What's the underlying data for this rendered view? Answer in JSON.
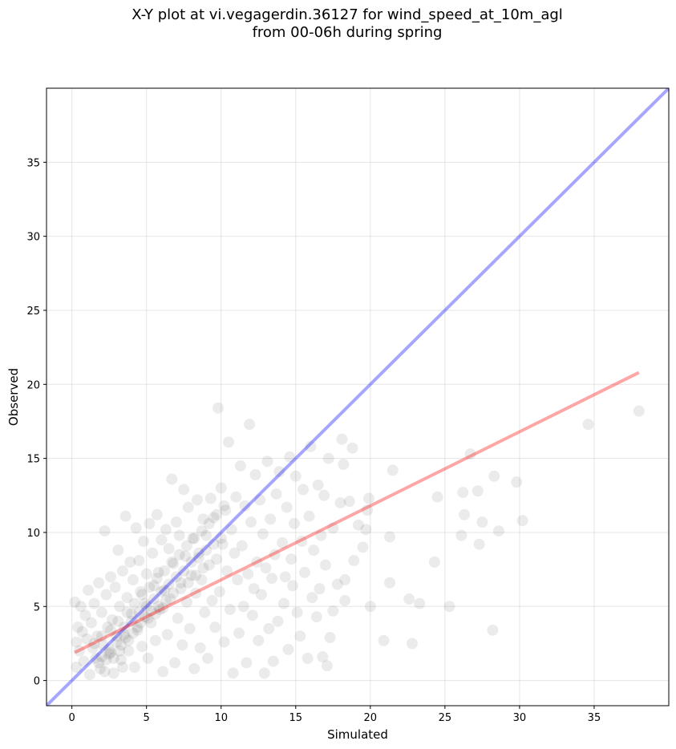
{
  "chart_data": {
    "type": "scatter",
    "title_lines": [
      "X-Y plot at vi.vegagerdin.36127 for wind_speed_at_10m_agl",
      "from 00-06h during spring"
    ],
    "xlabel": "Simulated",
    "ylabel": "Observed",
    "xlim": [
      -1.7,
      40
    ],
    "ylim": [
      -1.7,
      40
    ],
    "xticks": [
      0,
      5,
      10,
      15,
      20,
      25,
      30,
      35
    ],
    "yticks": [
      0,
      5,
      10,
      15,
      20,
      25,
      30,
      35
    ],
    "grid": true,
    "legend": "none",
    "point_color": "#000000",
    "point_alpha": 0.08,
    "reference_line": {
      "x": [
        -1.7,
        40
      ],
      "y": [
        -1.7,
        40
      ],
      "color": "#0000ff",
      "alpha": 0.35
    },
    "regression_line": {
      "x": [
        0.2,
        38
      ],
      "y": [
        1.9,
        20.8
      ],
      "color": "#ff0000",
      "alpha": 0.35
    },
    "points": [
      [
        38.0,
        18.2
      ],
      [
        34.6,
        17.3
      ],
      [
        30.2,
        10.8
      ],
      [
        29.8,
        13.4
      ],
      [
        28.6,
        10.1
      ],
      [
        28.3,
        13.8
      ],
      [
        28.2,
        3.4
      ],
      [
        27.5,
        10.7
      ],
      [
        27.3,
        9.2
      ],
      [
        27.2,
        12.8
      ],
      [
        26.7,
        15.3
      ],
      [
        26.3,
        11.2
      ],
      [
        26.2,
        12.7
      ],
      [
        26.1,
        9.8
      ],
      [
        25.3,
        5.0
      ],
      [
        24.5,
        12.4
      ],
      [
        24.3,
        8.0
      ],
      [
        23.3,
        5.2
      ],
      [
        22.8,
        2.5
      ],
      [
        22.6,
        5.5
      ],
      [
        21.5,
        14.2
      ],
      [
        21.3,
        9.7
      ],
      [
        21.3,
        6.6
      ],
      [
        20.9,
        2.7
      ],
      [
        20.0,
        5.0
      ],
      [
        19.9,
        12.3
      ],
      [
        19.8,
        11.5
      ],
      [
        19.7,
        10.2
      ],
      [
        19.5,
        9.0
      ],
      [
        19.2,
        10.5
      ],
      [
        18.9,
        8.1
      ],
      [
        18.8,
        15.7
      ],
      [
        18.6,
        12.1
      ],
      [
        18.3,
        6.8
      ],
      [
        18.3,
        5.4
      ],
      [
        18.2,
        14.6
      ],
      [
        18.1,
        16.3
      ],
      [
        18.0,
        12.0
      ],
      [
        17.8,
        6.5
      ],
      [
        17.5,
        10.3
      ],
      [
        17.5,
        4.7
      ],
      [
        17.3,
        2.9
      ],
      [
        17.2,
        15.0
      ],
      [
        17.1,
        1.0
      ],
      [
        17.0,
        7.8
      ],
      [
        16.9,
        12.5
      ],
      [
        16.8,
        1.6
      ],
      [
        16.7,
        9.8
      ],
      [
        16.6,
        6.2
      ],
      [
        16.5,
        13.2
      ],
      [
        16.4,
        4.3
      ],
      [
        16.2,
        8.8
      ],
      [
        16.1,
        5.6
      ],
      [
        16.0,
        15.8
      ],
      [
        15.9,
        11.1
      ],
      [
        15.8,
        1.5
      ],
      [
        15.6,
        7.3
      ],
      [
        15.5,
        12.9
      ],
      [
        15.4,
        9.4
      ],
      [
        15.3,
        3.0
      ],
      [
        15.1,
        4.6
      ],
      [
        15.0,
        13.8
      ],
      [
        14.9,
        10.6
      ],
      [
        14.8,
        6.4
      ],
      [
        14.7,
        8.2
      ],
      [
        14.6,
        15.1
      ],
      [
        14.5,
        2.1
      ],
      [
        14.4,
        11.7
      ],
      [
        14.3,
        7.0
      ],
      [
        14.2,
        5.2
      ],
      [
        14.1,
        9.3
      ],
      [
        13.9,
        14.1
      ],
      [
        13.8,
        4.0
      ],
      [
        13.7,
        12.6
      ],
      [
        13.6,
        8.5
      ],
      [
        13.5,
        1.3
      ],
      [
        13.4,
        6.9
      ],
      [
        13.3,
        10.9
      ],
      [
        13.2,
        3.5
      ],
      [
        13.1,
        14.8
      ],
      [
        13.0,
        7.6
      ],
      [
        12.9,
        0.5
      ],
      [
        12.8,
        9.9
      ],
      [
        12.7,
        5.8
      ],
      [
        12.6,
        12.2
      ],
      [
        12.5,
        2.7
      ],
      [
        12.4,
        8.0
      ],
      [
        12.3,
        13.9
      ],
      [
        12.2,
        6.2
      ],
      [
        12.1,
        4.4
      ],
      [
        12.0,
        10.7
      ],
      [
        11.9,
        17.3
      ],
      [
        11.8,
        7.2
      ],
      [
        11.7,
        1.2
      ],
      [
        11.6,
        11.8
      ],
      [
        11.5,
        5.0
      ],
      [
        11.4,
        9.1
      ],
      [
        11.3,
        14.5
      ],
      [
        11.2,
        3.2
      ],
      [
        11.1,
        6.8
      ],
      [
        11.0,
        12.4
      ],
      [
        10.9,
        8.6
      ],
      [
        10.8,
        0.5
      ],
      [
        10.7,
        10.2
      ],
      [
        10.6,
        4.8
      ],
      [
        10.5,
        16.1
      ],
      [
        10.4,
        7.4
      ],
      [
        10.3,
        11.5
      ],
      [
        10.2,
        2.6
      ],
      [
        10.1,
        9.2
      ],
      [
        10.0,
        13.0
      ],
      [
        9.9,
        6.0
      ],
      [
        9.8,
        18.4
      ],
      [
        9.7,
        8.2
      ],
      [
        9.6,
        3.6
      ],
      [
        9.5,
        11.0
      ],
      [
        9.4,
        5.4
      ],
      [
        9.3,
        12.3
      ],
      [
        9.2,
        7.8
      ],
      [
        9.1,
        1.5
      ],
      [
        9.0,
        9.8
      ],
      [
        8.9,
        4.6
      ],
      [
        8.8,
        10.9
      ],
      [
        8.7,
        6.8
      ],
      [
        8.6,
        2.2
      ],
      [
        8.5,
        8.6
      ],
      [
        8.4,
        12.2
      ],
      [
        8.3,
        5.9
      ],
      [
        8.2,
        0.8
      ],
      [
        8.1,
        9.6
      ],
      [
        8.0,
        7.1
      ],
      [
        7.9,
        3.5
      ],
      [
        7.8,
        11.7
      ],
      [
        7.7,
        5.3
      ],
      [
        7.6,
        8.4
      ],
      [
        7.5,
        12.9
      ],
      [
        7.4,
        2.4
      ],
      [
        7.3,
        6.6
      ],
      [
        7.2,
        9.8
      ],
      [
        7.1,
        4.2
      ],
      [
        7.0,
        10.7
      ],
      [
        6.9,
        1.2
      ],
      [
        6.8,
        7.9
      ],
      [
        6.7,
        13.6
      ],
      [
        6.6,
        5.5
      ],
      [
        6.5,
        8.9
      ],
      [
        6.4,
        3.1
      ],
      [
        6.3,
        10.2
      ],
      [
        6.2,
        6.1
      ],
      [
        6.1,
        0.6
      ],
      [
        6.0,
        9.5
      ],
      [
        5.9,
        4.8
      ],
      [
        5.8,
        7.3
      ],
      [
        5.7,
        11.2
      ],
      [
        5.6,
        2.7
      ],
      [
        5.5,
        6.4
      ],
      [
        5.4,
        8.6
      ],
      [
        5.3,
        3.9
      ],
      [
        5.2,
        10.6
      ],
      [
        5.1,
        1.5
      ],
      [
        5.0,
        7.2
      ],
      [
        4.9,
        5.2
      ],
      [
        4.8,
        9.4
      ],
      [
        4.7,
        2.3
      ],
      [
        4.6,
        6.0
      ],
      [
        4.5,
        8.1
      ],
      [
        4.4,
        3.4
      ],
      [
        4.3,
        10.3
      ],
      [
        4.2,
        0.9
      ],
      [
        4.1,
        6.8
      ],
      [
        4.0,
        4.5
      ],
      [
        3.9,
        8.0
      ],
      [
        3.8,
        2.0
      ],
      [
        3.7,
        5.6
      ],
      [
        3.6,
        11.1
      ],
      [
        3.5,
        3.1
      ],
      [
        3.4,
        7.4
      ],
      [
        3.3,
        1.4
      ],
      [
        3.2,
        5.0
      ],
      [
        3.1,
        8.8
      ],
      [
        3.0,
        2.6
      ],
      [
        2.9,
        6.3
      ],
      [
        2.8,
        0.5
      ],
      [
        2.7,
        4.1
      ],
      [
        2.6,
        7.0
      ],
      [
        2.5,
        1.8
      ],
      [
        2.4,
        3.6
      ],
      [
        2.3,
        5.8
      ],
      [
        2.2,
        10.1
      ],
      [
        2.1,
        2.4
      ],
      [
        2.0,
        4.6
      ],
      [
        1.9,
        0.8
      ],
      [
        1.8,
        6.6
      ],
      [
        1.7,
        3.0
      ],
      [
        1.6,
        1.5
      ],
      [
        1.5,
        5.2
      ],
      [
        1.4,
        2.2
      ],
      [
        1.3,
        3.9
      ],
      [
        1.2,
        0.4
      ],
      [
        1.1,
        6.1
      ],
      [
        1.0,
        2.8
      ],
      [
        0.9,
        4.4
      ],
      [
        0.8,
        1.3
      ],
      [
        0.7,
        3.3
      ],
      [
        0.6,
        5.0
      ],
      [
        0.5,
        2.0
      ],
      [
        0.4,
        3.6
      ],
      [
        0.3,
        0.9
      ],
      [
        0.2,
        5.3
      ],
      [
        0.3,
        2.6
      ],
      [
        2.0,
        1.6
      ],
      [
        2.5,
        2.1
      ],
      [
        3.0,
        3.0
      ],
      [
        3.5,
        3.6
      ],
      [
        4.0,
        4.0
      ],
      [
        4.5,
        4.6
      ],
      [
        5.0,
        5.0
      ],
      [
        5.5,
        5.5
      ],
      [
        6.0,
        6.0
      ],
      [
        6.5,
        6.5
      ],
      [
        7.0,
        7.0
      ],
      [
        7.5,
        7.4
      ],
      [
        8.0,
        8.0
      ],
      [
        8.5,
        8.3
      ],
      [
        9.0,
        8.8
      ],
      [
        9.5,
        9.2
      ],
      [
        10.0,
        9.6
      ],
      [
        2.8,
        1.5
      ],
      [
        3.2,
        2.0
      ],
      [
        3.8,
        2.7
      ],
      [
        4.4,
        3.6
      ],
      [
        4.9,
        4.3
      ],
      [
        5.3,
        4.7
      ],
      [
        5.8,
        5.0
      ],
      [
        6.3,
        5.4
      ],
      [
        6.8,
        5.9
      ],
      [
        7.3,
        6.2
      ],
      [
        7.8,
        6.6
      ],
      [
        8.3,
        7.1
      ],
      [
        8.8,
        7.6
      ],
      [
        1.8,
        1.2
      ],
      [
        2.3,
        1.4
      ],
      [
        2.6,
        1.9
      ],
      [
        3.3,
        2.4
      ],
      [
        3.6,
        2.9
      ],
      [
        4.1,
        3.2
      ],
      [
        4.6,
        3.9
      ],
      [
        5.1,
        4.2
      ],
      [
        5.6,
        4.5
      ],
      [
        6.1,
        4.9
      ],
      [
        1.5,
        2.5
      ],
      [
        2.0,
        3.0
      ],
      [
        2.6,
        3.4
      ],
      [
        3.1,
        4.0
      ],
      [
        3.7,
        4.6
      ],
      [
        4.2,
        5.2
      ],
      [
        4.7,
        5.8
      ],
      [
        5.2,
        6.3
      ],
      [
        5.7,
        6.9
      ],
      [
        6.2,
        7.4
      ],
      [
        6.7,
        8.0
      ],
      [
        7.2,
        8.5
      ],
      [
        7.7,
        9.1
      ],
      [
        8.2,
        9.6
      ],
      [
        8.7,
        10.1
      ],
      [
        9.2,
        10.6
      ],
      [
        9.7,
        11.2
      ],
      [
        10.2,
        11.8
      ],
      [
        2.2,
        0.6
      ],
      [
        3.4,
        0.9
      ]
    ]
  }
}
